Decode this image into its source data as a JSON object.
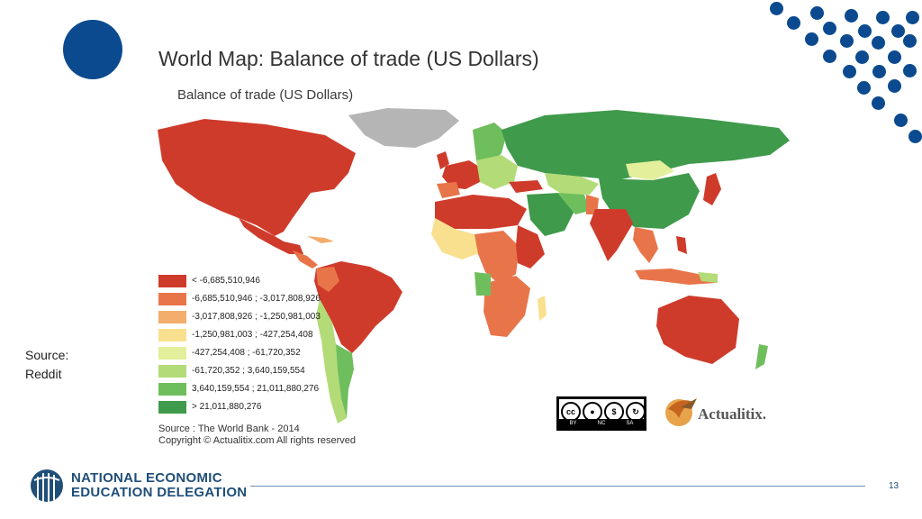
{
  "slide": {
    "title": "World Map: Balance of trade (US Dollars)",
    "source_label": "Source:",
    "source_value": "Reddit",
    "page_number": "13"
  },
  "map": {
    "title": "Balance of trade (US Dollars)",
    "legend": [
      {
        "label": "< -6,685,510,946",
        "color": "#cf3b2b"
      },
      {
        "label": "-6,685,510,946 ; -3,017,808,926",
        "color": "#e8754a"
      },
      {
        "label": "-3,017,808,926 ; -1,250,981,003",
        "color": "#f3ad6c"
      },
      {
        "label": "-1,250,981,003 ; -427,254,408",
        "color": "#f9e08f"
      },
      {
        "label": "-427,254,408 ; -61,720,352",
        "color": "#e3ef9a"
      },
      {
        "label": "-61,720,352 ; 3,640,159,554",
        "color": "#b3db77"
      },
      {
        "label": "3,640,159,554 ; 21,011,880,276",
        "color": "#6fbe5d"
      },
      {
        "label": "> 21,011,880,276",
        "color": "#3f9a4c"
      }
    ],
    "source_line": "Source : The World Bank - 2014",
    "copyright_line": "Copyright © Actualitix.com All rights reserved",
    "no_data_color": "#b5b5b5"
  },
  "cc_badge": {
    "by": "BY",
    "nc": "NC",
    "sa": "SA",
    "cc": "cc"
  },
  "brand": {
    "name": "Actualitix.",
    "org_line1": "NATIONAL ECONOMIC",
    "org_line2": "EDUCATION DELEGATION"
  },
  "colors": {
    "accent": "#0b4a8f",
    "footer": "#1f4e79"
  }
}
